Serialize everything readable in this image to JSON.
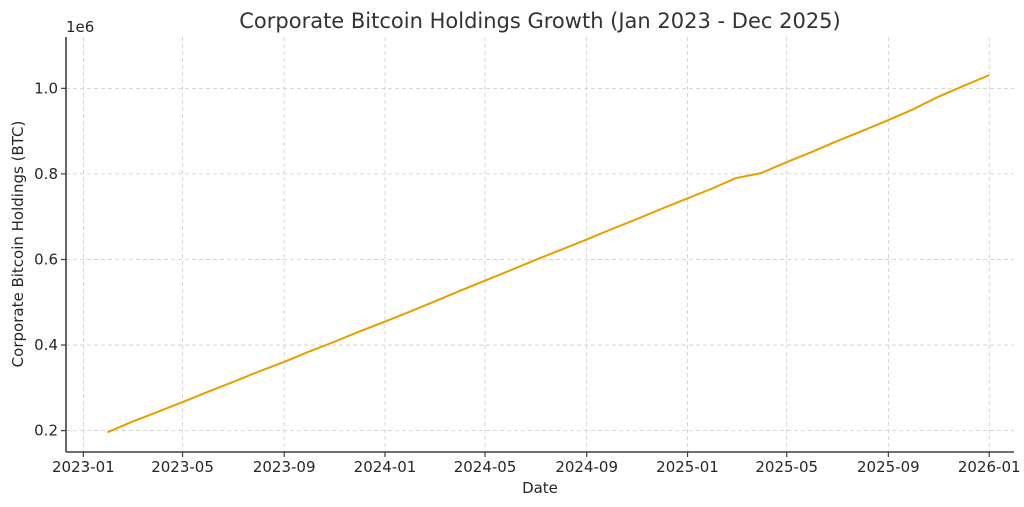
{
  "chart_data": {
    "type": "line",
    "title": "Corporate Bitcoin Holdings Growth (Jan 2023 - Dec 2025)",
    "xlabel": "Date",
    "ylabel": "Corporate Bitcoin Holdings (BTC)",
    "y_offset_label": "1e6",
    "xlim": [
      "2022-12-11",
      "2026-01-31"
    ],
    "ylim": [
      150000,
      1120000
    ],
    "grid": true,
    "legend": null,
    "x_ticks": [
      "2023-01",
      "2023-05",
      "2023-09",
      "2024-01",
      "2024-05",
      "2024-09",
      "2025-01",
      "2025-05",
      "2025-09",
      "2026-01"
    ],
    "y_ticks": [
      {
        "value": 200000,
        "label": "0.2"
      },
      {
        "value": 400000,
        "label": "0.4"
      },
      {
        "value": 600000,
        "label": "0.6"
      },
      {
        "value": 800000,
        "label": "0.8"
      },
      {
        "value": 1000000,
        "label": "1.0"
      }
    ],
    "series": [
      {
        "name": "Corporate Bitcoin Holdings",
        "color": "#E69F00",
        "x": [
          "2023-01-31",
          "2023-02-28",
          "2023-03-31",
          "2023-04-30",
          "2023-05-31",
          "2023-06-30",
          "2023-07-31",
          "2023-08-31",
          "2023-09-30",
          "2023-10-31",
          "2023-11-30",
          "2023-12-31",
          "2024-01-31",
          "2024-02-29",
          "2024-03-31",
          "2024-04-30",
          "2024-05-31",
          "2024-06-30",
          "2024-07-31",
          "2024-08-31",
          "2024-09-30",
          "2024-10-31",
          "2024-11-30",
          "2024-12-31",
          "2025-01-31",
          "2025-02-28",
          "2025-03-31",
          "2025-04-30",
          "2025-05-31",
          "2025-06-30",
          "2025-07-31",
          "2025-08-31",
          "2025-09-30",
          "2025-10-31",
          "2025-11-30",
          "2025-12-31"
        ],
        "values": [
          197000,
          220000,
          243000,
          266000,
          290000,
          313000,
          337000,
          360000,
          384000,
          407000,
          431000,
          454000,
          478000,
          501000,
          526000,
          550000,
          574000,
          598000,
          622000,
          646000,
          670000,
          694000,
          718000,
          742000,
          766000,
          790000,
          802000,
          827000,
          851000,
          876000,
          900000,
          925000,
          950000,
          980000,
          1005000,
          1030000
        ]
      }
    ]
  },
  "page": {
    "title": "Corporate Bitcoin Holdings Growth (Jan 2023 - Dec 2025)",
    "xlabel": "Date",
    "ylabel": "Corporate Bitcoin Holdings (BTC)",
    "offset": "1e6"
  }
}
